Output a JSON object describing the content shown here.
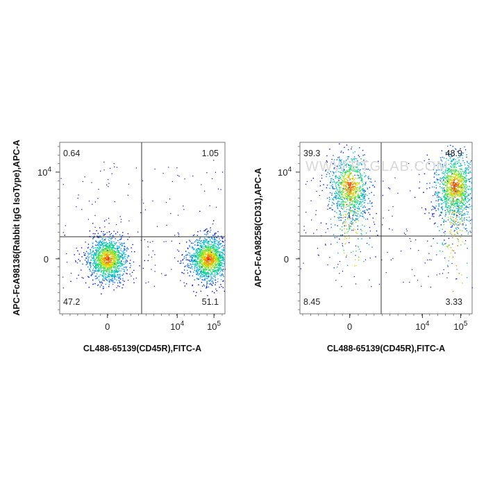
{
  "chart_data": [
    {
      "type": "scatter",
      "subtype": "flow cytometry density dot plot (pseudocolor)",
      "xlabel": "CL488-65139(CD45R),FITC-A",
      "ylabel": "APC-FcA98136(Rabbit IgG IsoType),APC-A",
      "x_ticks": [
        {
          "label": "0",
          "value": 0
        },
        {
          "label": "10",
          "sup": "4",
          "value": 10000
        },
        {
          "label": "10",
          "sup": "5",
          "value": 100000
        }
      ],
      "y_ticks": [
        {
          "label": "0",
          "value": 0
        },
        {
          "label": "10",
          "sup": "4",
          "value": 10000
        }
      ],
      "gate": {
        "x": 3500,
        "y": 1800
      },
      "quadrants": {
        "upper_left": "0.64",
        "upper_right": "1.05",
        "lower_left": "47.2",
        "lower_right": "51.1"
      },
      "populations": [
        {
          "quadrant": "lower_left",
          "center_x": 0,
          "center_y": 0,
          "percent": 47.2
        },
        {
          "quadrant": "lower_right",
          "center_x": 70000,
          "center_y": 0,
          "percent": 51.1
        }
      ],
      "watermark": ""
    },
    {
      "type": "scatter",
      "subtype": "flow cytometry density dot plot (pseudocolor)",
      "xlabel": "CL488-65139(CD45R),FITC-A",
      "ylabel": "APC-FcA98258(CD31),APC-A",
      "x_ticks": [
        {
          "label": "0",
          "value": 0
        },
        {
          "label": "10",
          "sup": "4",
          "value": 10000
        },
        {
          "label": "10",
          "sup": "5",
          "value": 100000
        }
      ],
      "y_ticks": [
        {
          "label": "0",
          "value": 0
        },
        {
          "label": "10",
          "sup": "4",
          "value": 10000
        }
      ],
      "gate": {
        "x": 3500,
        "y": 1800
      },
      "quadrants": {
        "upper_left": "39.3",
        "upper_right": "48.9",
        "lower_left": "8.45",
        "lower_right": "3.33"
      },
      "populations": [
        {
          "quadrant": "upper_left",
          "center_x": 0,
          "center_y": 5000,
          "percent": 39.3
        },
        {
          "quadrant": "upper_right",
          "center_x": 70000,
          "center_y": 5000,
          "percent": 48.9
        }
      ],
      "watermark": "WWW.PTGLAB.COM"
    }
  ],
  "colors": {
    "density_low": "#0000ff",
    "density_mid": "#00ff80",
    "density_high": "#ff2000",
    "gate_line": "#333333"
  }
}
